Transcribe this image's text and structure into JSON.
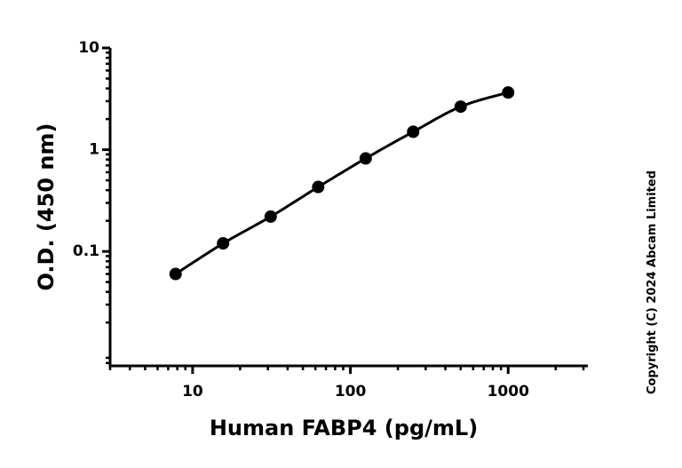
{
  "chart_data": {
    "type": "scatter",
    "xlabel": "Human FABP4 (pg/mL)",
    "ylabel": "O.D. (450 nm)",
    "x_scale": "log",
    "y_scale": "log",
    "xlim": [
      3,
      3200
    ],
    "ylim": [
      0.0075,
      10
    ],
    "x_ticks": [
      "10",
      "100",
      "1000"
    ],
    "y_ticks": [
      "10",
      "1",
      "0.1"
    ],
    "grid": false,
    "legend": "none",
    "fit_curve": true,
    "series": [
      {
        "x": [
          7.8,
          15.6,
          31.25,
          62.5,
          125,
          250,
          500,
          1000
        ],
        "y": [
          0.06,
          0.12,
          0.22,
          0.43,
          0.82,
          1.5,
          2.65,
          3.65
        ],
        "color": "#000000"
      }
    ],
    "annotation": "Copyright (C) 2024 Abcam Limited"
  }
}
